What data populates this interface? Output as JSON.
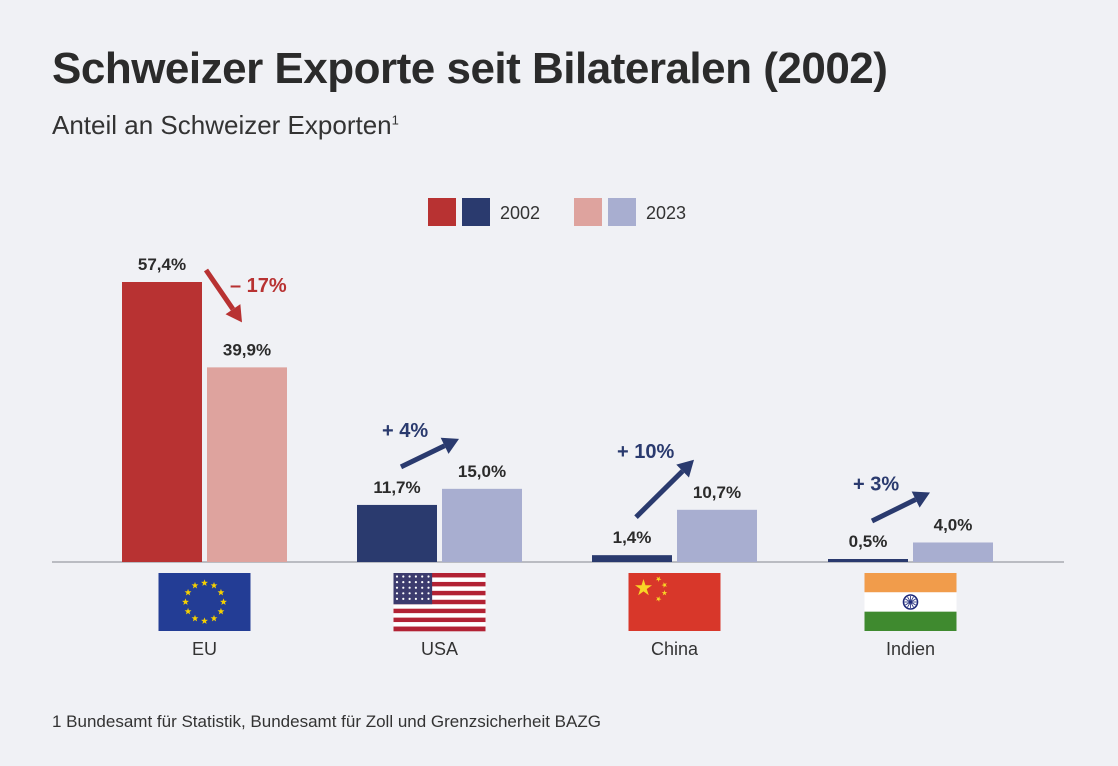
{
  "chart_data": {
    "type": "bar",
    "title": "Schweizer Exporte seit Bilateralen (2002)",
    "subtitle": "Anteil an Schweizer Exporten",
    "subtitle_footnote_marker": "1",
    "legend": {
      "placement": "top-center",
      "entries": [
        {
          "label": "2002",
          "colors": [
            "#b83232",
            "#2a3a6e"
          ]
        },
        {
          "label": "2023",
          "colors": [
            "#dea39e",
            "#a8aed0"
          ]
        }
      ]
    },
    "categories": [
      "EU",
      "USA",
      "China",
      "Indien"
    ],
    "series": [
      {
        "year": "2002",
        "values": [
          57.4,
          11.7,
          1.4,
          0.5
        ],
        "labels": [
          "57,4%",
          "11,7%",
          "1,4%",
          "0,5%"
        ]
      },
      {
        "year": "2023",
        "values": [
          39.9,
          15.0,
          10.7,
          4.0
        ],
        "labels": [
          "39,9%",
          "15,0%",
          "10,7%",
          "4,0%"
        ]
      }
    ],
    "bar_colors": {
      "2002": [
        "#b83232",
        "#2a3a6e",
        "#2a3a6e",
        "#2a3a6e"
      ],
      "2023": [
        "#dea39e",
        "#a8aed0",
        "#a8aed0",
        "#a8aed0"
      ]
    },
    "changes": [
      {
        "category": "EU",
        "label": "– 17%",
        "direction": "down",
        "color": "#b83232"
      },
      {
        "category": "USA",
        "label": "+ 4%",
        "direction": "up",
        "color": "#2a3a6e"
      },
      {
        "category": "China",
        "label": "+ 10%",
        "direction": "up",
        "color": "#2a3a6e"
      },
      {
        "category": "Indien",
        "label": "+ 3%",
        "direction": "up",
        "color": "#2a3a6e"
      }
    ],
    "flags": [
      "eu-flag-icon",
      "usa-flag-icon",
      "china-flag-icon",
      "india-flag-icon"
    ],
    "ylim": [
      0,
      57.4
    ],
    "grid": false
  },
  "footnote": "1 Bundesamt für Statistik, Bundesamt für Zoll und Grenzsicherheit BAZG"
}
